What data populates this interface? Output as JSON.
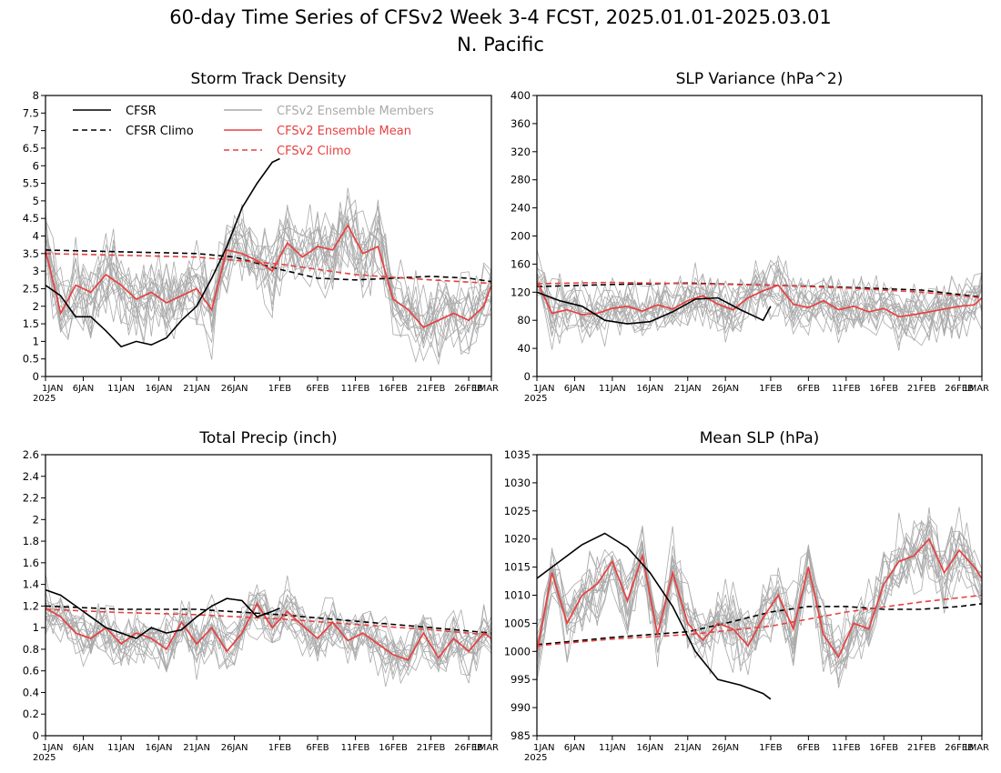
{
  "title": {
    "line1": "60-day Time Series of CFSv2 Week 3-4 FCST, 2025.01.01-2025.03.01",
    "line2": "N. Pacific"
  },
  "legend": [
    {
      "label": "CFSR",
      "color": "#000000",
      "style": "solid",
      "series": "cfsr"
    },
    {
      "label": "CFSR Climo",
      "color": "#000000",
      "style": "dashed",
      "series": "cfsr_climo"
    },
    {
      "label": "CFSv2 Ensemble Members",
      "color": "#aaaaaa",
      "style": "solid",
      "series": "members"
    },
    {
      "label": "CFSv2 Ensemble Mean",
      "color": "#e84040",
      "style": "solid",
      "series": "ens_mean"
    },
    {
      "label": "CFSv2 Climo",
      "color": "#e84040",
      "style": "dashed",
      "series": "cfsv2_climo"
    }
  ],
  "x_axis": {
    "start_date": "2025-01-01",
    "end_date": "2025-03-01",
    "tick_labels": [
      "1JAN",
      "6JAN",
      "11JAN",
      "16JAN",
      "21JAN",
      "26JAN",
      "1FEB",
      "6FEB",
      "11FEB",
      "16FEB",
      "21FEB",
      "26FEB",
      "1MAR"
    ],
    "tick_dates": [
      "2025-01-01",
      "2025-01-06",
      "2025-01-11",
      "2025-01-16",
      "2025-01-21",
      "2025-01-26",
      "2025-02-01",
      "2025-02-06",
      "2025-02-11",
      "2025-02-16",
      "2025-02-21",
      "2025-02-26",
      "2025-03-01"
    ],
    "year_label": "2025"
  },
  "colors": {
    "cfsr": "#000000",
    "cfsr_climo": "#000000",
    "members": "#aaaaaa",
    "ens_mean": "#e84040",
    "cfsv2_climo": "#e84040"
  },
  "chart_data": [
    {
      "type": "line",
      "title": "Storm Track Density",
      "ylim": [
        0,
        8
      ],
      "yticks": [
        0,
        0.5,
        1,
        1.5,
        2,
        2.5,
        3,
        3.5,
        4,
        4.5,
        5,
        5.5,
        6,
        6.5,
        7,
        7.5,
        8
      ],
      "ytick_labels": [
        "0",
        "0.5",
        "1",
        "1.5",
        "2",
        "2.5",
        "3",
        "3.5",
        "4",
        "4.5",
        "5",
        "5.5",
        "6",
        "6.5",
        "7",
        "7.5",
        "8"
      ],
      "has_legend": true,
      "ensemble_spread": 0.9,
      "series": [
        {
          "key": "cfsr",
          "name": "CFSR",
          "x": [
            "2025-01-01",
            "2025-01-03",
            "2025-01-05",
            "2025-01-07",
            "2025-01-09",
            "2025-01-11",
            "2025-01-13",
            "2025-01-15",
            "2025-01-17",
            "2025-01-19",
            "2025-01-21",
            "2025-01-23",
            "2025-01-25",
            "2025-01-27",
            "2025-01-29",
            "2025-01-31",
            "2025-02-01"
          ],
          "y": [
            2.6,
            2.3,
            1.7,
            1.7,
            1.3,
            0.85,
            1.0,
            0.9,
            1.1,
            1.6,
            2.0,
            2.8,
            3.7,
            4.8,
            5.5,
            6.1,
            6.2
          ]
        },
        {
          "key": "cfsr_climo",
          "name": "CFSR Climo",
          "x": [
            "2025-01-01",
            "2025-01-11",
            "2025-01-21",
            "2025-01-26",
            "2025-02-01",
            "2025-02-06",
            "2025-02-11",
            "2025-02-16",
            "2025-02-21",
            "2025-02-26",
            "2025-03-01"
          ],
          "y": [
            3.6,
            3.55,
            3.5,
            3.4,
            3.05,
            2.8,
            2.75,
            2.8,
            2.85,
            2.8,
            2.7
          ]
        },
        {
          "key": "ens_mean",
          "name": "CFSv2 Ensemble Mean",
          "x": [
            "2025-01-01",
            "2025-01-03",
            "2025-01-05",
            "2025-01-07",
            "2025-01-09",
            "2025-01-11",
            "2025-01-13",
            "2025-01-15",
            "2025-01-17",
            "2025-01-19",
            "2025-01-21",
            "2025-01-23",
            "2025-01-25",
            "2025-01-27",
            "2025-01-29",
            "2025-01-31",
            "2025-02-02",
            "2025-02-04",
            "2025-02-06",
            "2025-02-08",
            "2025-02-10",
            "2025-02-12",
            "2025-02-14",
            "2025-02-16",
            "2025-02-18",
            "2025-02-20",
            "2025-02-22",
            "2025-02-24",
            "2025-02-26",
            "2025-02-28",
            "2025-03-01"
          ],
          "y": [
            3.6,
            1.8,
            2.6,
            2.4,
            2.9,
            2.6,
            2.2,
            2.4,
            2.1,
            2.3,
            2.5,
            1.9,
            3.6,
            3.5,
            3.3,
            3.0,
            3.8,
            3.4,
            3.7,
            3.6,
            4.3,
            3.5,
            3.7,
            2.2,
            1.9,
            1.4,
            1.6,
            1.8,
            1.6,
            2.0,
            2.6
          ]
        },
        {
          "key": "cfsv2_climo",
          "name": "CFSv2 Climo",
          "x": [
            "2025-01-01",
            "2025-01-11",
            "2025-01-21",
            "2025-02-01",
            "2025-02-11",
            "2025-02-21",
            "2025-03-01"
          ],
          "y": [
            3.5,
            3.45,
            3.4,
            3.2,
            2.9,
            2.75,
            2.65
          ]
        }
      ]
    },
    {
      "type": "line",
      "title": "SLP Variance (hPa^2)",
      "ylim": [
        0,
        400
      ],
      "yticks": [
        0,
        40,
        80,
        120,
        160,
        200,
        240,
        280,
        320,
        360,
        400
      ],
      "ytick_labels": [
        "0",
        "40",
        "80",
        "120",
        "160",
        "200",
        "240",
        "280",
        "320",
        "360",
        "400"
      ],
      "has_legend": false,
      "ensemble_spread": 32,
      "series": [
        {
          "key": "cfsr",
          "name": "CFSR",
          "x": [
            "2025-01-01",
            "2025-01-04",
            "2025-01-07",
            "2025-01-10",
            "2025-01-13",
            "2025-01-16",
            "2025-01-19",
            "2025-01-22",
            "2025-01-25",
            "2025-01-28",
            "2025-01-31",
            "2025-02-01"
          ],
          "y": [
            120,
            108,
            100,
            80,
            75,
            78,
            92,
            110,
            112,
            95,
            80,
            100
          ]
        },
        {
          "key": "cfsr_climo",
          "name": "CFSR Climo",
          "x": [
            "2025-01-01",
            "2025-01-11",
            "2025-01-21",
            "2025-02-01",
            "2025-02-11",
            "2025-02-21",
            "2025-03-01"
          ],
          "y": [
            128,
            131,
            133,
            130,
            127,
            123,
            113
          ]
        },
        {
          "key": "ens_mean",
          "name": "CFSv2 Ensemble Mean",
          "x": [
            "2025-01-01",
            "2025-01-03",
            "2025-01-05",
            "2025-01-07",
            "2025-01-09",
            "2025-01-11",
            "2025-01-13",
            "2025-01-15",
            "2025-01-17",
            "2025-01-19",
            "2025-01-21",
            "2025-01-23",
            "2025-01-25",
            "2025-01-27",
            "2025-01-29",
            "2025-01-31",
            "2025-02-02",
            "2025-02-04",
            "2025-02-06",
            "2025-02-08",
            "2025-02-10",
            "2025-02-12",
            "2025-02-14",
            "2025-02-16",
            "2025-02-18",
            "2025-02-20",
            "2025-02-22",
            "2025-02-24",
            "2025-02-26",
            "2025-02-28",
            "2025-03-01"
          ],
          "y": [
            135,
            90,
            95,
            88,
            90,
            97,
            100,
            93,
            102,
            96,
            108,
            115,
            103,
            95,
            112,
            122,
            130,
            103,
            98,
            108,
            95,
            100,
            92,
            97,
            85,
            88,
            92,
            96,
            100,
            102,
            112
          ]
        },
        {
          "key": "cfsv2_climo",
          "name": "CFSv2 Climo",
          "x": [
            "2025-01-01",
            "2025-01-11",
            "2025-01-21",
            "2025-02-01",
            "2025-02-11",
            "2025-02-21",
            "2025-03-01"
          ],
          "y": [
            132,
            134,
            132,
            130,
            126,
            120,
            112
          ]
        }
      ]
    },
    {
      "type": "line",
      "title": "Total Precip (inch)",
      "ylim": [
        0,
        2.6
      ],
      "yticks": [
        0,
        0.2,
        0.4,
        0.6,
        0.8,
        1,
        1.2,
        1.4,
        1.6,
        1.8,
        2,
        2.2,
        2.4,
        2.6
      ],
      "ytick_labels": [
        "0",
        "0.2",
        "0.4",
        "0.6",
        "0.8",
        "1",
        "1.2",
        "1.4",
        "1.6",
        "1.8",
        "2",
        "2.2",
        "2.4",
        "2.6"
      ],
      "has_legend": false,
      "ensemble_spread": 0.2,
      "series": [
        {
          "key": "cfsr",
          "name": "CFSR",
          "x": [
            "2025-01-01",
            "2025-01-03",
            "2025-01-05",
            "2025-01-07",
            "2025-01-09",
            "2025-01-11",
            "2025-01-13",
            "2025-01-15",
            "2025-01-17",
            "2025-01-19",
            "2025-01-21",
            "2025-01-23",
            "2025-01-25",
            "2025-01-27",
            "2025-01-29",
            "2025-01-31",
            "2025-02-01"
          ],
          "y": [
            1.35,
            1.3,
            1.2,
            1.1,
            1.0,
            0.95,
            0.9,
            1.0,
            0.95,
            0.98,
            1.1,
            1.2,
            1.27,
            1.25,
            1.1,
            1.15,
            1.18
          ]
        },
        {
          "key": "cfsr_climo",
          "name": "CFSR Climo",
          "x": [
            "2025-01-01",
            "2025-01-11",
            "2025-01-21",
            "2025-02-01",
            "2025-02-11",
            "2025-02-21",
            "2025-03-01"
          ],
          "y": [
            1.2,
            1.17,
            1.17,
            1.12,
            1.06,
            1.0,
            0.95
          ]
        },
        {
          "key": "ens_mean",
          "name": "CFSv2 Ensemble Mean",
          "x": [
            "2025-01-01",
            "2025-01-03",
            "2025-01-05",
            "2025-01-07",
            "2025-01-09",
            "2025-01-11",
            "2025-01-13",
            "2025-01-15",
            "2025-01-17",
            "2025-01-19",
            "2025-01-21",
            "2025-01-23",
            "2025-01-25",
            "2025-01-27",
            "2025-01-29",
            "2025-01-31",
            "2025-02-02",
            "2025-02-04",
            "2025-02-06",
            "2025-02-08",
            "2025-02-10",
            "2025-02-12",
            "2025-02-14",
            "2025-02-16",
            "2025-02-18",
            "2025-02-20",
            "2025-02-22",
            "2025-02-24",
            "2025-02-26",
            "2025-02-28",
            "2025-03-01"
          ],
          "y": [
            1.18,
            1.1,
            0.95,
            0.9,
            1.0,
            0.85,
            0.95,
            0.9,
            0.8,
            1.05,
            0.85,
            1.0,
            0.78,
            0.95,
            1.22,
            1.0,
            1.15,
            1.02,
            0.9,
            1.05,
            0.88,
            0.95,
            0.85,
            0.75,
            0.7,
            0.95,
            0.72,
            0.9,
            0.78,
            0.95,
            0.9
          ]
        },
        {
          "key": "cfsv2_climo",
          "name": "CFSv2 Climo",
          "x": [
            "2025-01-01",
            "2025-01-11",
            "2025-01-21",
            "2025-02-01",
            "2025-02-11",
            "2025-02-21",
            "2025-03-01"
          ],
          "y": [
            1.17,
            1.14,
            1.12,
            1.08,
            1.03,
            0.98,
            0.93
          ]
        }
      ]
    },
    {
      "type": "line",
      "title": "Mean SLP (hPa)",
      "ylim": [
        985,
        1035
      ],
      "yticks": [
        985,
        990,
        995,
        1000,
        1005,
        1010,
        1015,
        1020,
        1025,
        1030,
        1035
      ],
      "ytick_labels": [
        "985",
        "990",
        "995",
        "1000",
        "1005",
        "1010",
        "1015",
        "1020",
        "1025",
        "1030",
        "1035"
      ],
      "has_legend": false,
      "ensemble_spread": 5,
      "series": [
        {
          "key": "cfsr",
          "name": "CFSR",
          "x": [
            "2025-01-01",
            "2025-01-04",
            "2025-01-07",
            "2025-01-10",
            "2025-01-13",
            "2025-01-16",
            "2025-01-19",
            "2025-01-22",
            "2025-01-25",
            "2025-01-28",
            "2025-01-31",
            "2025-02-01"
          ],
          "y": [
            1013,
            1016,
            1019,
            1021,
            1018.5,
            1014,
            1008,
            1000,
            995,
            994,
            992.5,
            991.5
          ]
        },
        {
          "key": "cfsr_climo",
          "name": "CFSR Climo",
          "x": [
            "2025-01-01",
            "2025-01-11",
            "2025-01-21",
            "2025-01-26",
            "2025-02-01",
            "2025-02-06",
            "2025-02-11",
            "2025-02-16",
            "2025-02-21",
            "2025-02-26",
            "2025-03-01"
          ],
          "y": [
            1001.2,
            1002.5,
            1003.5,
            1005,
            1007,
            1008,
            1008,
            1007.5,
            1007.5,
            1008,
            1008.5
          ]
        },
        {
          "key": "ens_mean",
          "name": "CFSv2 Ensemble Mean",
          "x": [
            "2025-01-01",
            "2025-01-03",
            "2025-01-05",
            "2025-01-07",
            "2025-01-09",
            "2025-01-11",
            "2025-01-13",
            "2025-01-15",
            "2025-01-17",
            "2025-01-19",
            "2025-01-21",
            "2025-01-23",
            "2025-01-25",
            "2025-01-27",
            "2025-01-29",
            "2025-01-31",
            "2025-02-02",
            "2025-02-04",
            "2025-02-06",
            "2025-02-08",
            "2025-02-10",
            "2025-02-12",
            "2025-02-14",
            "2025-02-16",
            "2025-02-18",
            "2025-02-20",
            "2025-02-22",
            "2025-02-24",
            "2025-02-26",
            "2025-02-28",
            "2025-03-01"
          ],
          "y": [
            1000,
            1014,
            1005,
            1010,
            1012,
            1016,
            1009,
            1017,
            1003,
            1014,
            1005,
            1002,
            1005,
            1004,
            1001,
            1006,
            1010,
            1004,
            1015,
            1003,
            999,
            1005,
            1004,
            1012,
            1016,
            1017,
            1020,
            1014,
            1018,
            1015,
            1013
          ]
        },
        {
          "key": "cfsv2_climo",
          "name": "CFSv2 Climo",
          "x": [
            "2025-01-01",
            "2025-01-11",
            "2025-01-21",
            "2025-02-01",
            "2025-02-11",
            "2025-02-21",
            "2025-03-01"
          ],
          "y": [
            1001,
            1002.2,
            1003,
            1004.5,
            1007,
            1008.8,
            1010
          ]
        }
      ]
    }
  ]
}
